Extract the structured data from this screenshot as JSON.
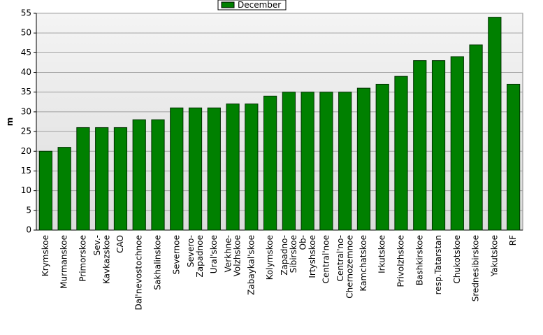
{
  "chart_data": {
    "type": "bar",
    "y_label": "m",
    "categories": [
      "Krymskoe",
      "Murmanskoe",
      "Primorskoe",
      "Sev.-\nKavkazskoe",
      "CAO",
      "Dal'nevostochnoe",
      "Sakhalinskoe",
      "Severnoe",
      "Severo-\nZapadnoe",
      "Ural'skoe",
      "Verkhne-\nVolzhskoe",
      "Zabaykal'skoe",
      "Kolymskoe",
      "Zapadno-\nSibirskoe",
      "Ob-\nIrtyshskoe",
      "Central'noe",
      "Central'no-\nChernozemnoe",
      "Kamchatskoe",
      "Irkutskoe",
      "Privolzhskoe",
      "Bashkirskoe",
      "resp.Tatarstan",
      "Chukotskoe",
      "Srednesibirskoe",
      "Yakutskoe",
      "RF"
    ],
    "series": [
      {
        "name": "December",
        "color": "#008000",
        "values": [
          20,
          21,
          26,
          26,
          26,
          28,
          28,
          31,
          31,
          31,
          32,
          32,
          34,
          35,
          35,
          35,
          35,
          36,
          37,
          39,
          43,
          43,
          44,
          47,
          54,
          37
        ]
      }
    ],
    "ylim": [
      0,
      55
    ],
    "yticks": [
      0,
      5,
      10,
      15,
      20,
      25,
      30,
      35,
      40,
      45,
      50,
      55
    ],
    "grid": true,
    "legend": "top"
  }
}
